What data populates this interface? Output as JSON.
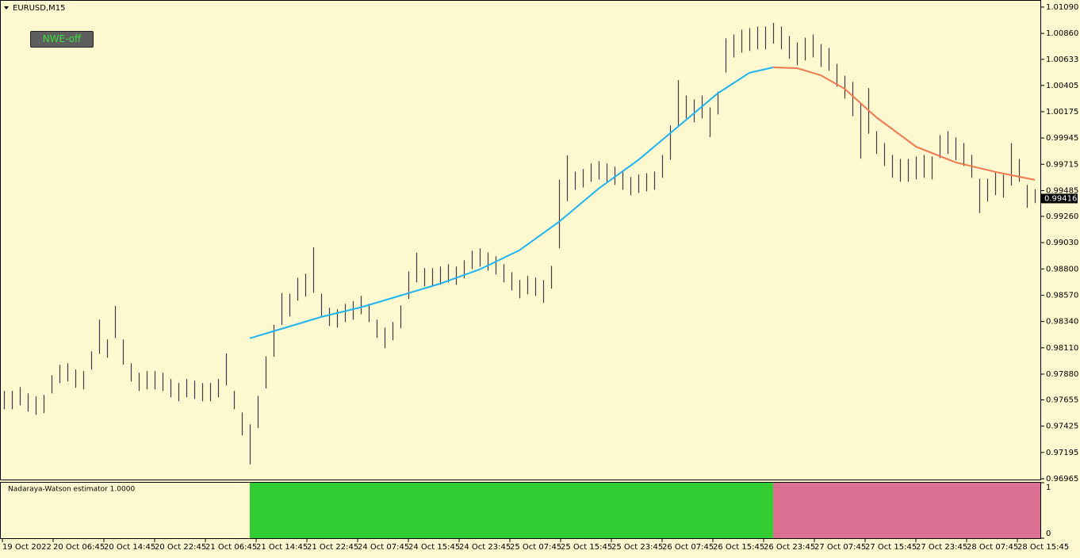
{
  "chart_data": {
    "type": "ohlc",
    "title": "EURUSD,M15",
    "button": "NWE-off",
    "ylim": [
      0.96958,
      1.01152
    ],
    "yticks": [
      {
        "value": 1.0109,
        "label": "1.01090"
      },
      {
        "value": 1.0086,
        "label": "1.00860"
      },
      {
        "value": 1.00633,
        "label": "1.00633"
      },
      {
        "value": 1.00405,
        "label": "1.00405"
      },
      {
        "value": 1.00175,
        "label": "1.00175"
      },
      {
        "value": 0.99945,
        "label": "0.99945"
      },
      {
        "value": 0.99715,
        "label": "0.99715"
      },
      {
        "value": 0.99485,
        "label": "0.99485"
      },
      {
        "value": 0.9926,
        "label": "0.99260"
      },
      {
        "value": 0.9903,
        "label": "0.99030"
      },
      {
        "value": 0.988,
        "label": "0.98800"
      },
      {
        "value": 0.9857,
        "label": "0.98570"
      },
      {
        "value": 0.9834,
        "label": "0.98340"
      },
      {
        "value": 0.9811,
        "label": "0.98110"
      },
      {
        "value": 0.9788,
        "label": "0.97880"
      },
      0.97655,
      0.97425,
      0.97195,
      0.96965
    ],
    "last_price": 0.99416,
    "time_labels": [
      "19 Oct 2022",
      "20 Oct 06:45",
      "20 Oct 14:45",
      "20 Oct 22:45",
      "21 Oct 06:45",
      "21 Oct 14:45",
      "21 Oct 22:45",
      "24 Oct 07:45",
      "24 Oct 15:45",
      "24 Oct 23:45",
      "25 Oct 07:45",
      "25 Oct 15:45",
      "25 Oct 23:45",
      "26 Oct 07:45",
      "26 Oct 15:45",
      "26 Oct 23:45",
      "27 Oct 07:45",
      "27 Oct 15:45",
      "27 Oct 23:45",
      "28 Oct 07:45",
      "28 Oct 15:45"
    ],
    "bar_color": "#4a3848",
    "high": [
      0.97733,
      0.97733,
      0.97767,
      0.97712,
      0.97684,
      0.97698,
      0.97871,
      0.97961,
      0.97975,
      0.9792,
      0.97906,
      0.98079,
      0.98357,
      0.98183,
      0.98476,
      0.98183,
      0.97975,
      0.97892,
      0.97906,
      0.97906,
      0.97892,
      0.97837,
      0.97802,
      0.97837,
      0.97823,
      0.97802,
      0.97802,
      0.97837,
      0.98061,
      0.97733,
      0.97545,
      0.97441,
      0.97689,
      0.98035,
      0.98312,
      0.9859,
      0.98584,
      0.98723,
      0.98758,
      0.9899,
      0.98584,
      0.9846,
      0.98447,
      0.98495,
      0.98516,
      0.98564,
      0.98495,
      0.98356,
      0.98287,
      0.98336,
      0.9848,
      0.98778,
      0.98942,
      0.98807,
      0.98807,
      0.98821,
      0.98842,
      0.98821,
      0.98876,
      0.98959,
      0.9898,
      0.98945,
      0.98911,
      0.98842,
      0.98772,
      0.98703,
      0.98738,
      0.98724,
      0.98703,
      0.98827,
      0.99581,
      0.99793,
      0.99652,
      0.99673,
      0.99722,
      0.99742,
      0.99722,
      0.99694,
      0.99652,
      0.99604,
      0.99625,
      0.99638,
      0.99652,
      0.99797,
      1.00055,
      1.00451,
      1.00317,
      1.00282,
      1.00317,
      1.00213,
      1.00351,
      1.00817,
      1.0085,
      1.00892,
      1.00906,
      1.0092,
      1.0092,
      1.00951,
      1.0092,
      1.00837,
      1.00781,
      1.00823,
      1.0085,
      1.00767,
      1.00733,
      1.00594,
      1.0049,
      1.00436,
      1.00244,
      1.00382,
      1.00005,
      0.99901,
      0.99797,
      0.99762,
      0.99762,
      0.99783,
      0.99797,
      0.99783,
      0.9997,
      1.00005,
      0.9995,
      0.99901,
      0.99797,
      0.99589,
      0.99589,
      0.99645,
      0.99624,
      0.999,
      0.99762,
      0.99534,
      0.99496
    ],
    "low": [
      0.97573,
      0.97573,
      0.97607,
      0.97552,
      0.97524,
      0.97538,
      0.97711,
      0.97801,
      0.97815,
      0.9776,
      0.97746,
      0.97919,
      0.98057,
      0.98023,
      0.98196,
      0.97963,
      0.97815,
      0.97732,
      0.97746,
      0.97746,
      0.97732,
      0.97677,
      0.97642,
      0.97677,
      0.97663,
      0.97642,
      0.97642,
      0.97677,
      0.97781,
      0.97573,
      0.97345,
      0.97091,
      0.97409,
      0.97755,
      0.98032,
      0.9831,
      0.98384,
      0.98523,
      0.98558,
      0.98592,
      0.98384,
      0.983,
      0.98287,
      0.98335,
      0.98356,
      0.98404,
      0.98335,
      0.98196,
      0.98107,
      0.98176,
      0.9828,
      0.98538,
      0.98682,
      0.98647,
      0.98647,
      0.98661,
      0.98682,
      0.98661,
      0.98716,
      0.98799,
      0.9882,
      0.98785,
      0.98751,
      0.98682,
      0.98612,
      0.98543,
      0.98578,
      0.98564,
      0.98503,
      0.98627,
      0.98981,
      0.99393,
      0.99492,
      0.99513,
      0.99562,
      0.99582,
      0.99562,
      0.99534,
      0.99492,
      0.99444,
      0.99465,
      0.99478,
      0.99492,
      0.99597,
      0.99755,
      1.00051,
      1.00117,
      1.00082,
      1.00117,
      0.99953,
      1.00151,
      1.00517,
      1.0065,
      1.00692,
      1.00706,
      1.0072,
      1.0072,
      1.00771,
      1.0072,
      1.00637,
      1.00581,
      1.00623,
      1.0065,
      1.00567,
      1.00533,
      1.00394,
      1.0029,
      1.00136,
      0.99764,
      0.99982,
      0.99805,
      0.99701,
      0.99597,
      0.99562,
      0.99562,
      0.99583,
      0.99597,
      0.99583,
      0.9977,
      0.99805,
      0.9975,
      0.99701,
      0.99597,
      0.99289,
      0.99389,
      0.99445,
      0.99424,
      0.99528,
      0.99562,
      0.99334,
      0.99376
    ],
    "series": [
      {
        "color": "#1eb4f0",
        "x": [
          31,
          35,
          40,
          45,
          50,
          55,
          60,
          65,
          70,
          75,
          80,
          85,
          90,
          94,
          97
        ],
        "values": [
          0.98193,
          0.98276,
          0.9838,
          0.98464,
          0.98567,
          0.98671,
          0.98796,
          0.98963,
          0.99212,
          0.99503,
          0.99753,
          1.00044,
          1.00335,
          1.00515,
          1.00563
        ]
      },
      {
        "color": "#f07850",
        "x": [
          97,
          100,
          103,
          106,
          110,
          115,
          120,
          125,
          130
        ],
        "values": [
          1.00563,
          1.00556,
          1.00494,
          1.00376,
          1.00127,
          0.9987,
          0.99732,
          0.99649,
          0.99579
        ]
      }
    ],
    "indicator": {
      "label": "Nadaraya-Watson estimator  1.0000",
      "ylim": [
        0,
        1
      ],
      "yticks": [
        1,
        0
      ],
      "segments": [
        {
          "from": 31,
          "to": 97,
          "value": 1,
          "color": "#32cd32"
        },
        {
          "from": 97,
          "to": 130,
          "value": 1,
          "color": "#db7093"
        }
      ]
    }
  }
}
